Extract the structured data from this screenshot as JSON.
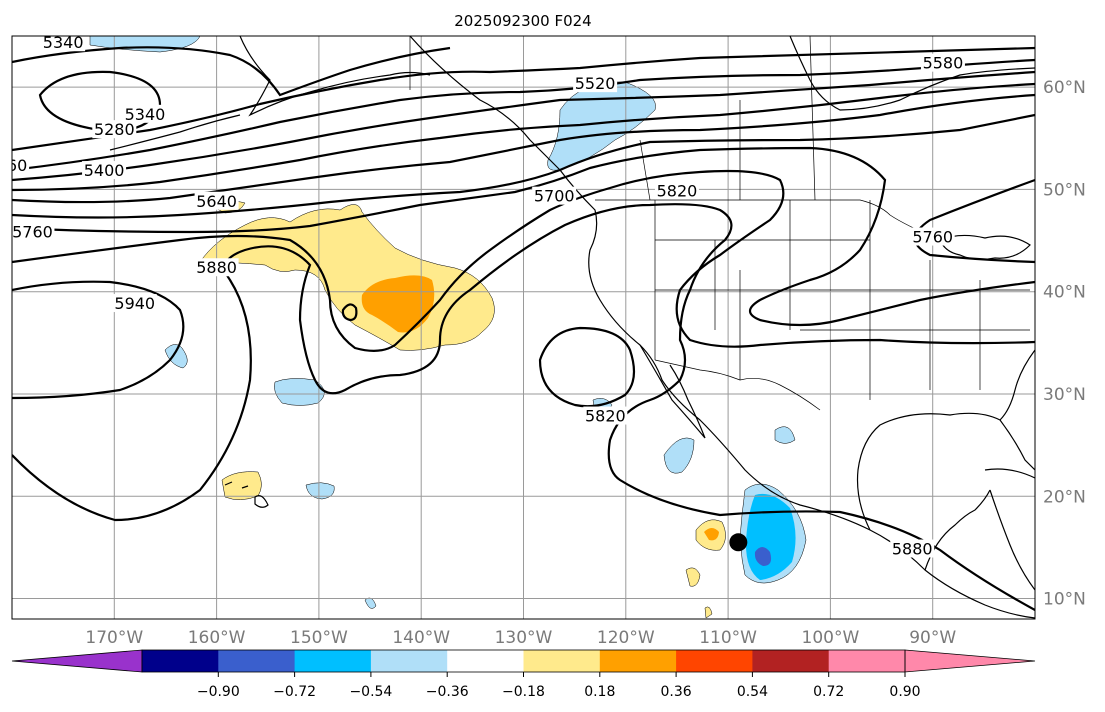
{
  "title": "2025092300 F024",
  "map": {
    "extent": {
      "lon_min": -180,
      "lon_max": -80,
      "lat_min": 8,
      "lat_max": 65
    },
    "lon_ticks": [
      {
        "lon": -170,
        "label": "170°W"
      },
      {
        "lon": -160,
        "label": "160°W"
      },
      {
        "lon": -150,
        "label": "150°W"
      },
      {
        "lon": -140,
        "label": "140°W"
      },
      {
        "lon": -130,
        "label": "130°W"
      },
      {
        "lon": -120,
        "label": "120°W"
      },
      {
        "lon": -110,
        "label": "110°W"
      },
      {
        "lon": -100,
        "label": "100°W"
      },
      {
        "lon": -90,
        "label": "90°W"
      }
    ],
    "lat_ticks": [
      {
        "lat": 60,
        "label": "60°N"
      },
      {
        "lat": 50,
        "label": "50°N"
      },
      {
        "lat": 40,
        "label": "40°N"
      },
      {
        "lat": 30,
        "label": "30°N"
      },
      {
        "lat": 20,
        "label": "20°N"
      },
      {
        "lat": 10,
        "label": "10°N"
      }
    ],
    "contour_labels": [
      {
        "text": "5340",
        "lon": -175,
        "lat": 64
      },
      {
        "text": "5280",
        "lon": -170,
        "lat": 55.5
      },
      {
        "text": "5340",
        "lon": -167,
        "lat": 57
      },
      {
        "text": "60",
        "lon": -179.5,
        "lat": 52
      },
      {
        "text": "5400",
        "lon": -171,
        "lat": 51.5
      },
      {
        "text": "5520",
        "lon": -123,
        "lat": 60
      },
      {
        "text": "5580",
        "lon": -89,
        "lat": 62
      },
      {
        "text": "5700",
        "lon": -127,
        "lat": 49
      },
      {
        "text": "5820",
        "lon": -115,
        "lat": 49.5
      },
      {
        "text": "5640",
        "lon": -160,
        "lat": 48.5
      },
      {
        "text": "5760",
        "lon": -178,
        "lat": 45.5
      },
      {
        "text": "5880",
        "lon": -160,
        "lat": 42
      },
      {
        "text": "5940",
        "lon": -168,
        "lat": 38.5
      },
      {
        "text": "5820",
        "lon": -122,
        "lat": 27.5
      },
      {
        "text": "5880",
        "lon": -92,
        "lat": 14.5
      },
      {
        "text": "5760",
        "lon": -90,
        "lat": 45
      }
    ],
    "marker": {
      "lon": -109,
      "lat": 15.5
    },
    "colors": {
      "light_blue": "#b0dff8",
      "deep_sky": "#00bfff",
      "royal_blue": "#3a5fcd",
      "light_yellow": "#ffea8c",
      "orange": "#ffa000"
    }
  },
  "colorbar": {
    "levels": [
      "−0.90",
      "−0.72",
      "−0.54",
      "−0.36",
      "−0.18",
      "0.18",
      "0.36",
      "0.54",
      "0.72",
      "0.90"
    ],
    "colors": [
      "#9932cc",
      "#00008b",
      "#3a5fcd",
      "#00bfff",
      "#b0dff8",
      "#ffffff",
      "#ffea8c",
      "#ffa000",
      "#ff4500",
      "#b22222",
      "#ff88aa",
      "#ff88aa"
    ]
  }
}
